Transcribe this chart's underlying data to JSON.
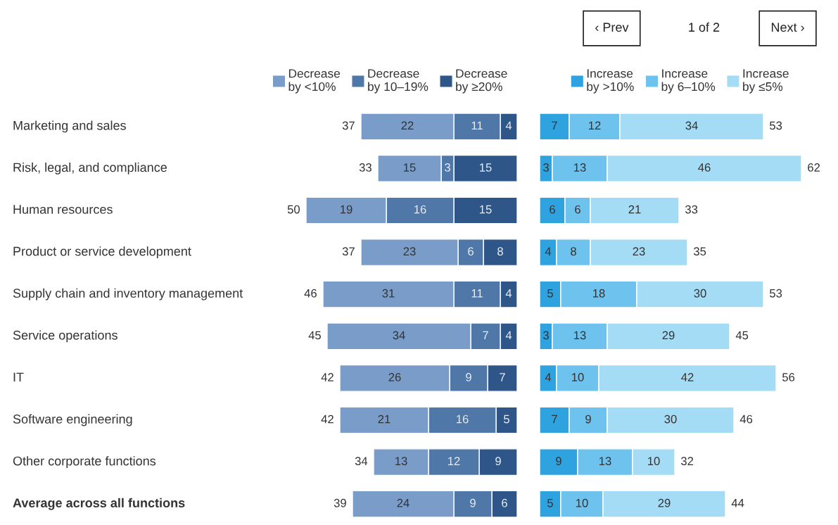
{
  "chart_data": [
    {
      "type": "bar",
      "orientation": "horizontal",
      "stacked": true,
      "data_labels": true,
      "legend": "top",
      "tick_labels": "y",
      "categories": [
        "Marketing and sales",
        "Risk, legal, and compliance",
        "Human resources",
        "Product or service development",
        "Supply chain and inventory management",
        "Service operations",
        "IT",
        "Software engineering",
        "Other corporate functions",
        "Average across all functions"
      ],
      "series": [
        {
          "name": "Decrease\nby ≥20%",
          "color": "#2f5688",
          "values": [
            4,
            15,
            15,
            8,
            4,
            4,
            7,
            5,
            9,
            6
          ]
        },
        {
          "name": "Decrease\nby 10–19%",
          "color": "#4f77a8",
          "values": [
            11,
            3,
            16,
            6,
            11,
            7,
            9,
            16,
            12,
            9
          ]
        },
        {
          "name": "Decrease\nby <10%",
          "color": "#7a9cc9",
          "values": [
            22,
            15,
            19,
            23,
            31,
            34,
            26,
            21,
            13,
            24
          ]
        }
      ],
      "totals": [
        "37",
        "33",
        "50",
        "37",
        "46",
        "45",
        "42",
        "42",
        "34",
        "39"
      ]
    },
    {
      "type": "bar",
      "orientation": "horizontal",
      "stacked": true,
      "data_labels": true,
      "legend": "top",
      "tick_labels": false,
      "series": [
        {
          "name": "Increase\nby >10%",
          "color": "#2ea3e0",
          "values": [
            7,
            3,
            6,
            4,
            5,
            3,
            4,
            7,
            9,
            5
          ]
        },
        {
          "name": "Increase\nby 6–10%",
          "color": "#6ec3ee",
          "values": [
            12,
            13,
            6,
            8,
            18,
            13,
            10,
            9,
            13,
            10
          ]
        },
        {
          "name": "Increase\nby ≤5%",
          "color": "#a5dcf5",
          "values": [
            34,
            46,
            21,
            23,
            30,
            29,
            42,
            30,
            10,
            29
          ]
        }
      ],
      "totals": [
        "53",
        "62",
        "33",
        "35",
        "53",
        "45",
        "56",
        "46",
        "32",
        "44"
      ],
      "annotations": [
        "‹ Prev",
        "1 of 2",
        "Next ›"
      ]
    }
  ]
}
